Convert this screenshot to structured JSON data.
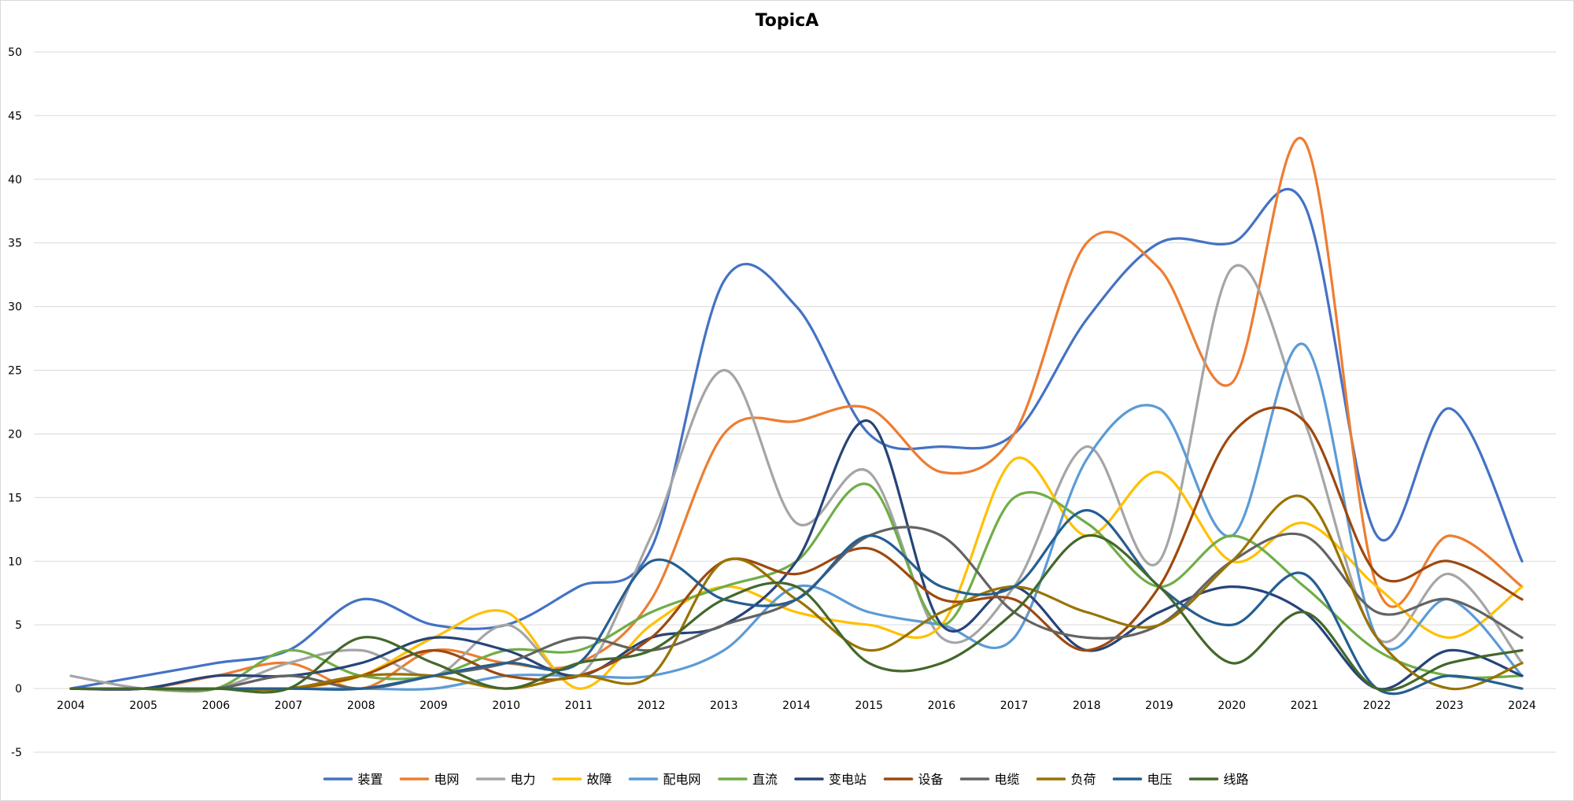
{
  "chart_data": {
    "type": "line",
    "title": "TopicA",
    "xlabel": "",
    "ylabel": "",
    "categories": [
      "2004",
      "2005",
      "2006",
      "2007",
      "2008",
      "2009",
      "2010",
      "2011",
      "2012",
      "2013",
      "2014",
      "2015",
      "2016",
      "2017",
      "2018",
      "2019",
      "2020",
      "2021",
      "2022",
      "2023",
      "2024"
    ],
    "ylim": [
      -5,
      50
    ],
    "yticks": [
      -5,
      0,
      5,
      10,
      15,
      20,
      25,
      30,
      35,
      40,
      45,
      50
    ],
    "grid": true,
    "legend_position": "bottom",
    "smooth": true,
    "series": [
      {
        "name": "装置",
        "color": "#4472C4",
        "values": [
          0,
          1,
          2,
          3,
          7,
          5,
          5,
          8,
          11,
          32,
          30,
          20,
          19,
          20,
          29,
          35,
          35,
          38,
          12,
          22,
          10
        ]
      },
      {
        "name": "电网",
        "color": "#ED7D31",
        "values": [
          0,
          0,
          1,
          2,
          0,
          3,
          2,
          2,
          7,
          20,
          21,
          22,
          17,
          20,
          35,
          33,
          24,
          43,
          8,
          12,
          8
        ]
      },
      {
        "name": "电力",
        "color": "#A5A5A5",
        "values": [
          1,
          0,
          0,
          2,
          3,
          1,
          5,
          1,
          12,
          25,
          13,
          17,
          4,
          8,
          19,
          10,
          33,
          21,
          4,
          9,
          2
        ]
      },
      {
        "name": "故障",
        "color": "#FFC000",
        "values": [
          0,
          0,
          0,
          0,
          1,
          4,
          6,
          0,
          5,
          8,
          6,
          5,
          5,
          18,
          12,
          17,
          10,
          13,
          8,
          4,
          8
        ]
      },
      {
        "name": "配电网",
        "color": "#5B9BD5",
        "values": [
          0,
          0,
          0,
          0,
          0,
          0,
          1,
          1,
          1,
          3,
          8,
          6,
          5,
          4,
          18,
          22,
          12,
          27,
          4,
          7,
          1
        ]
      },
      {
        "name": "直流",
        "color": "#70AD47",
        "values": [
          0,
          0,
          0,
          3,
          1,
          1,
          3,
          3,
          6,
          8,
          10,
          16,
          5,
          15,
          13,
          8,
          12,
          8,
          3,
          1,
          1
        ]
      },
      {
        "name": "变电站",
        "color": "#264478",
        "values": [
          0,
          0,
          1,
          1,
          2,
          4,
          3,
          1,
          4,
          5,
          10,
          21,
          5,
          8,
          3,
          6,
          8,
          6,
          0,
          3,
          1
        ]
      },
      {
        "name": "设备",
        "color": "#9E480E",
        "values": [
          0,
          0,
          0,
          0,
          1,
          3,
          1,
          1,
          4,
          10,
          9,
          11,
          7,
          7,
          3,
          8,
          20,
          21,
          9,
          10,
          7
        ]
      },
      {
        "name": "电缆",
        "color": "#636363",
        "values": [
          0,
          0,
          0,
          1,
          0,
          1,
          2,
          4,
          3,
          5,
          7,
          12,
          12,
          6,
          4,
          5,
          10,
          12,
          6,
          7,
          4
        ]
      },
      {
        "name": "负荷",
        "color": "#997300",
        "values": [
          0,
          0,
          0,
          0,
          1,
          1,
          0,
          1,
          1,
          10,
          7,
          3,
          6,
          8,
          6,
          5,
          10,
          15,
          4,
          0,
          2
        ]
      },
      {
        "name": "电压",
        "color": "#255E91",
        "values": [
          0,
          0,
          0,
          0,
          0,
          1,
          2,
          2,
          10,
          7,
          7,
          12,
          8,
          8,
          14,
          8,
          5,
          9,
          0,
          1,
          0
        ]
      },
      {
        "name": "线路",
        "color": "#43682B",
        "values": [
          0,
          0,
          0,
          0,
          4,
          2,
          0,
          2,
          3,
          7,
          8,
          2,
          2,
          6,
          12,
          8,
          2,
          6,
          0,
          2,
          3
        ]
      }
    ]
  }
}
